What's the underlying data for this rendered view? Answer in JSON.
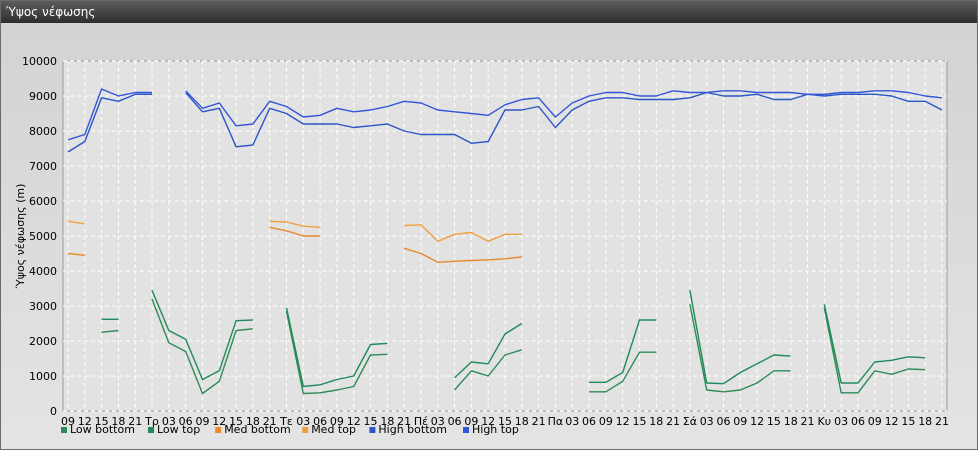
{
  "title": "Ύψος νέφωσης",
  "chart_data": {
    "type": "line",
    "ylabel": "Ύψος νέφωσης (m)",
    "ylim": [
      0,
      10000
    ],
    "yticks": [
      0,
      1000,
      2000,
      3000,
      4000,
      5000,
      6000,
      7000,
      8000,
      9000,
      10000
    ],
    "grid": true,
    "legend": "bottom-left",
    "x": [
      "09",
      "12",
      "15",
      "18",
      "21",
      "Τρ",
      "03",
      "06",
      "09",
      "12",
      "15",
      "18",
      "21",
      "Τε",
      "03",
      "06",
      "09",
      "12",
      "15",
      "18",
      "21",
      "Πέ",
      "03",
      "06",
      "09",
      "12",
      "15",
      "18",
      "21",
      "Πα",
      "03",
      "06",
      "09",
      "12",
      "15",
      "18",
      "21",
      "Σά",
      "03",
      "06",
      "09",
      "12",
      "15",
      "18",
      "21",
      "Κυ",
      "03",
      "06",
      "09",
      "12",
      "15",
      "18",
      "21"
    ],
    "series": [
      {
        "name": "Low bottom",
        "color": "#2e8b57",
        "values": [
          null,
          null,
          2250,
          2300,
          null,
          3200,
          1950,
          1700,
          500,
          850,
          2300,
          2350,
          null,
          2850,
          500,
          520,
          600,
          700,
          1600,
          1620,
          null,
          null,
          null,
          600,
          1150,
          1000,
          1600,
          1750,
          null,
          null,
          null,
          550,
          550,
          850,
          1680,
          1680,
          null,
          3050,
          600,
          550,
          600,
          800,
          1150,
          1150,
          null,
          2950,
          520,
          520,
          1150,
          1050,
          1200,
          1180,
          null
        ]
      },
      {
        "name": "Low top",
        "color": "#1f8a5a",
        "values": [
          null,
          null,
          2620,
          2620,
          null,
          3450,
          2300,
          2050,
          900,
          1150,
          2580,
          2600,
          null,
          2950,
          700,
          750,
          900,
          1000,
          1900,
          1930,
          null,
          null,
          null,
          950,
          1400,
          1350,
          2200,
          2500,
          null,
          null,
          null,
          820,
          820,
          1100,
          2600,
          2600,
          null,
          3450,
          800,
          780,
          1100,
          1350,
          1600,
          1570,
          null,
          3050,
          800,
          800,
          1400,
          1450,
          1550,
          1520,
          null
        ]
      },
      {
        "name": "Med bottom",
        "color": "#e8892a",
        "values": [
          4500,
          4450,
          null,
          null,
          null,
          null,
          null,
          null,
          null,
          null,
          null,
          null,
          5250,
          5150,
          5000,
          5000,
          null,
          null,
          null,
          null,
          4650,
          4500,
          4250,
          4280,
          4300,
          4320,
          4350,
          4400,
          null,
          null,
          null,
          null,
          null,
          null,
          null,
          null,
          null,
          null,
          null,
          null,
          null,
          null,
          null,
          null,
          null,
          null,
          null,
          null,
          null,
          null,
          null,
          null,
          null
        ]
      },
      {
        "name": "Med top",
        "color": "#f0a040",
        "values": [
          5420,
          5350,
          null,
          null,
          null,
          null,
          null,
          null,
          null,
          null,
          null,
          null,
          5420,
          5400,
          5280,
          5250,
          null,
          null,
          null,
          null,
          5300,
          5320,
          4850,
          5050,
          5100,
          4850,
          5050,
          5050,
          null,
          null,
          null,
          null,
          null,
          null,
          null,
          null,
          null,
          null,
          null,
          null,
          null,
          null,
          null,
          null,
          null,
          null,
          null,
          null,
          null,
          null,
          null,
          null,
          null
        ]
      },
      {
        "name": "High bottom",
        "color": "#2a56c6",
        "values": [
          7400,
          7700,
          8950,
          8850,
          9050,
          9050,
          null,
          9100,
          8550,
          8650,
          7550,
          7600,
          8650,
          8500,
          8200,
          8200,
          8200,
          8100,
          8150,
          8200,
          8000,
          7900,
          7900,
          7900,
          7650,
          7700,
          8600,
          8600,
          8700,
          8100,
          8600,
          8850,
          8950,
          8950,
          8900,
          8900,
          8900,
          8950,
          9100,
          9000,
          9000,
          9050,
          8900,
          8900,
          9050,
          9000,
          9050,
          9050,
          9050,
          9000,
          8850,
          8850,
          8600
        ]
      },
      {
        "name": "High top",
        "color": "#3355d8",
        "values": [
          7750,
          7900,
          9200,
          9000,
          9100,
          9100,
          null,
          9150,
          8650,
          8800,
          8150,
          8200,
          8850,
          8700,
          8400,
          8450,
          8650,
          8550,
          8600,
          8700,
          8850,
          8800,
          8600,
          8550,
          8500,
          8450,
          8750,
          8900,
          8950,
          8400,
          8800,
          9000,
          9100,
          9100,
          9000,
          9000,
          9150,
          9100,
          9100,
          9150,
          9150,
          9100,
          9100,
          9100,
          9050,
          9050,
          9100,
          9100,
          9150,
          9150,
          9100,
          9000,
          8950
        ]
      }
    ]
  }
}
